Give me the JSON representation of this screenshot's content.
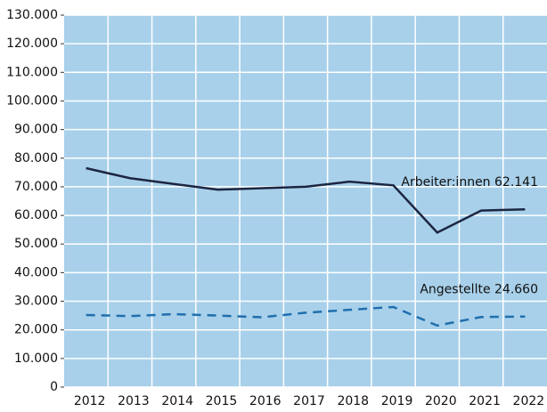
{
  "chart_data": {
    "type": "line",
    "categories": [
      "2012",
      "2013",
      "2014",
      "2015",
      "2016",
      "2017",
      "2018",
      "2019",
      "2020",
      "2021",
      "2022"
    ],
    "series": [
      {
        "name": "Arbeiter:innen",
        "color": "#1c2541",
        "dash": false,
        "values": [
          76500,
          73000,
          71000,
          69000,
          69500,
          70000,
          71800,
          70500,
          54000,
          61700,
          62141
        ]
      },
      {
        "name": "Angestellte",
        "color": "#1f6fae",
        "dash": true,
        "values": [
          25200,
          24800,
          25500,
          25000,
          24400,
          26000,
          27000,
          28000,
          21500,
          24500,
          24660
        ]
      }
    ],
    "annotations": [
      "Arbeiter:innen 62.141",
      "Angestellte 24.660"
    ],
    "ylim": [
      0,
      130000
    ],
    "yticks": [
      {
        "value": 0,
        "label": "0"
      },
      {
        "value": 10000,
        "label": "10.000"
      },
      {
        "value": 20000,
        "label": "20.000"
      },
      {
        "value": 30000,
        "label": "30.000"
      },
      {
        "value": 40000,
        "label": "40.000"
      },
      {
        "value": 50000,
        "label": "50.000"
      },
      {
        "value": 60000,
        "label": "60.000"
      },
      {
        "value": 70000,
        "label": "70.000"
      },
      {
        "value": 80000,
        "label": "80.000"
      },
      {
        "value": 90000,
        "label": "90.000"
      },
      {
        "value": 100000,
        "label": "100.000"
      },
      {
        "value": 110000,
        "label": "110.000"
      },
      {
        "value": 120000,
        "label": "120.000"
      },
      {
        "value": 130000,
        "label": "130.000"
      }
    ],
    "grid": true,
    "background": "#a8d0ea"
  }
}
